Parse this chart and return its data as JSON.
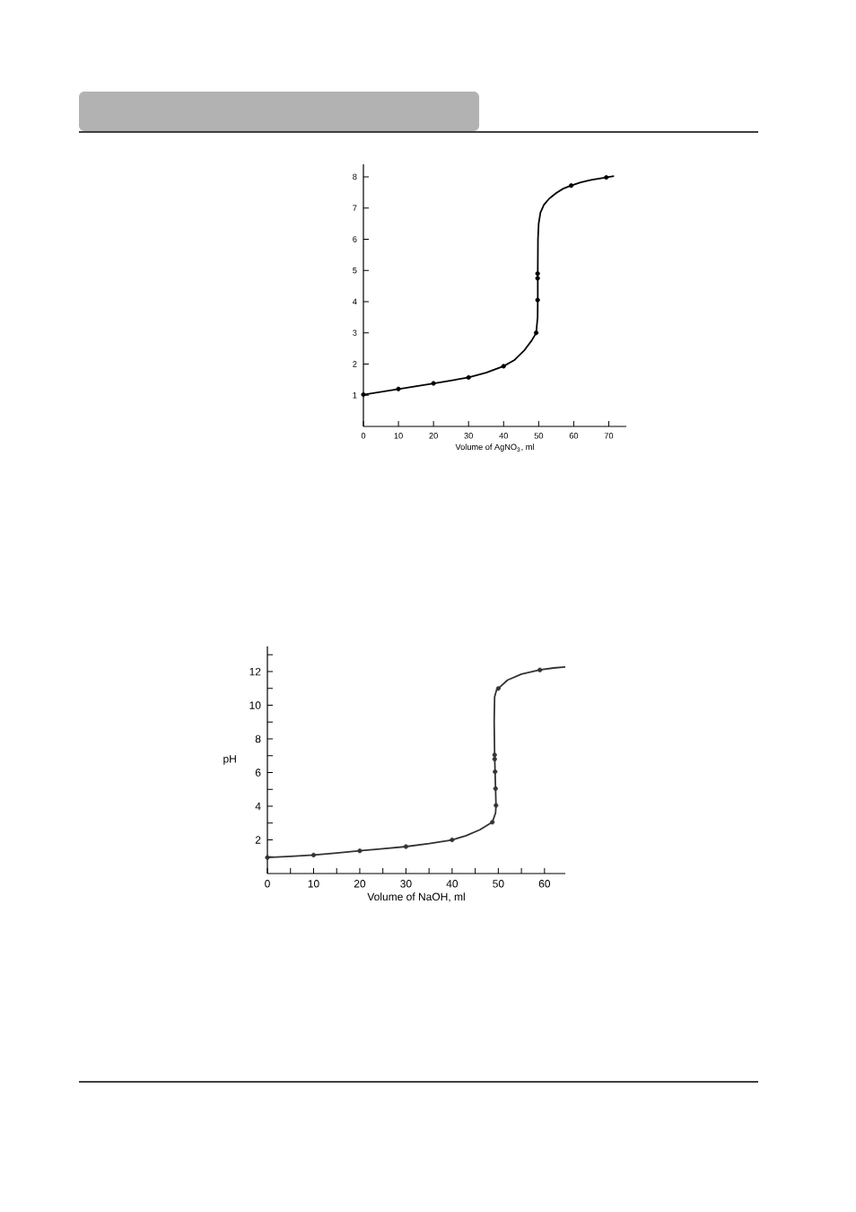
{
  "chart_data": [
    {
      "type": "line",
      "xlabel": "Volume of AgNO$_{3}$, ml",
      "xlim": [
        0,
        75
      ],
      "ylim": [
        0,
        8.4
      ],
      "xticks": [
        0,
        10,
        20,
        30,
        40,
        50,
        60,
        70
      ],
      "yticks": [
        1,
        2,
        3,
        4,
        5,
        6,
        7,
        8
      ],
      "series": [
        {
          "type": "line",
          "marker": "none",
          "color": "#000000",
          "x": [
            0,
            5,
            10,
            15,
            20,
            25,
            30,
            35,
            40,
            43,
            46,
            48,
            49.3,
            49.7,
            49.75,
            49.75,
            49.8,
            50.0,
            50.5,
            51.5,
            53,
            55,
            57,
            59.3,
            62,
            65,
            69.3,
            71.5
          ],
          "values": [
            1.02,
            1.11,
            1.2,
            1.29,
            1.38,
            1.47,
            1.57,
            1.72,
            1.93,
            2.12,
            2.45,
            2.75,
            3.0,
            3.5,
            4.05,
            5.0,
            6.0,
            6.5,
            6.85,
            7.1,
            7.3,
            7.48,
            7.62,
            7.72,
            7.82,
            7.9,
            7.98,
            8.02
          ]
        },
        {
          "type": "scatter",
          "marker": "circle",
          "color": "#000000",
          "x": [
            0,
            10,
            20,
            30,
            40,
            49.3,
            49.7,
            49.7,
            49.7,
            59.3,
            69.3
          ],
          "values": [
            1.02,
            1.2,
            1.38,
            1.57,
            1.93,
            3.0,
            4.05,
            4.75,
            4.9,
            7.72,
            7.98
          ]
        }
      ]
    },
    {
      "type": "line",
      "xlabel": "Volume of NaOH, ml",
      "ylabel": "pH",
      "xlim": [
        0,
        64.5
      ],
      "ylim": [
        0,
        13.5
      ],
      "xticks": [
        0,
        {
          "value": 5,
          "label": null
        },
        10,
        {
          "value": 15,
          "label": null
        },
        20,
        {
          "value": 25,
          "label": null
        },
        30,
        {
          "value": 35,
          "label": null
        },
        40,
        {
          "value": 45,
          "label": null
        },
        50,
        {
          "value": 55,
          "label": null
        },
        60
      ],
      "yticks": [
        {
          "value": 1,
          "label": null
        },
        2,
        {
          "value": 3,
          "label": null
        },
        4,
        {
          "value": 5,
          "label": null
        },
        6,
        {
          "value": 7,
          "label": null
        },
        8,
        {
          "value": 9,
          "label": null
        },
        10,
        {
          "value": 11,
          "label": null
        },
        12,
        {
          "value": 13,
          "label": null
        }
      ],
      "series": [
        {
          "type": "line",
          "marker": "none",
          "color": "#333333",
          "x": [
            0,
            5,
            10,
            15,
            20,
            25,
            30,
            35,
            40,
            43,
            46,
            48.7,
            49.4,
            49.5,
            49.4,
            49.3,
            49.2,
            49.1,
            49.2,
            49.6,
            50,
            52,
            55,
            59,
            62,
            64.5
          ],
          "values": [
            0.95,
            1.02,
            1.1,
            1.22,
            1.35,
            1.47,
            1.6,
            1.78,
            2.0,
            2.25,
            2.6,
            3.05,
            3.6,
            4.05,
            5.05,
            6.05,
            7.05,
            9.0,
            10.5,
            10.9,
            11.0,
            11.5,
            11.85,
            12.1,
            12.22,
            12.28
          ]
        },
        {
          "type": "scatter",
          "marker": "circle",
          "color": "#333333",
          "x": [
            0,
            10,
            20,
            30,
            40,
            48.7,
            49.5,
            49.4,
            49.3,
            49.2,
            49.2,
            50,
            59
          ],
          "values": [
            0.95,
            1.1,
            1.35,
            1.6,
            2.0,
            3.05,
            4.05,
            5.05,
            6.05,
            6.8,
            7.05,
            11.0,
            12.1
          ]
        }
      ]
    }
  ]
}
